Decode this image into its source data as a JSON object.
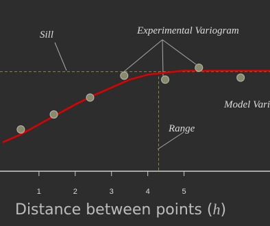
{
  "chart_data": {
    "type": "variogram",
    "x_label_parts": [
      "Distance between points (",
      "h",
      ")"
    ],
    "annotations": {
      "sill": "Sill",
      "experimental": "Experimental Variogram",
      "model": "Model Variogram",
      "range": "Range"
    },
    "xlim": [
      -0.074,
      7.37
    ],
    "ylim": [
      0,
      1.72
    ],
    "xticks": [
      1,
      2,
      3,
      4,
      5
    ],
    "sill": 1.0,
    "range": 4.3,
    "series": [
      {
        "name": "Experimental Variogram",
        "color": "#8a8a6a",
        "x": [
          0.5,
          1.41,
          2.41,
          3.35,
          4.48,
          5.41,
          6.56
        ],
        "values": [
          0.42,
          0.57,
          0.74,
          0.96,
          0.92,
          1.04,
          0.94
        ]
      },
      {
        "name": "Model Variogram",
        "color": "#e00000",
        "x": [
          0,
          0.5,
          1,
          1.5,
          2,
          2.5,
          3,
          3.5,
          4,
          4.5,
          5,
          5.5,
          6,
          6.5,
          7,
          7.37
        ],
        "values": [
          0.29,
          0.37,
          0.47,
          0.57,
          0.67,
          0.76,
          0.84,
          0.92,
          0.97,
          0.99,
          1.01,
          1.01,
          1.01,
          1.01,
          1.01,
          1.01
        ]
      }
    ]
  }
}
